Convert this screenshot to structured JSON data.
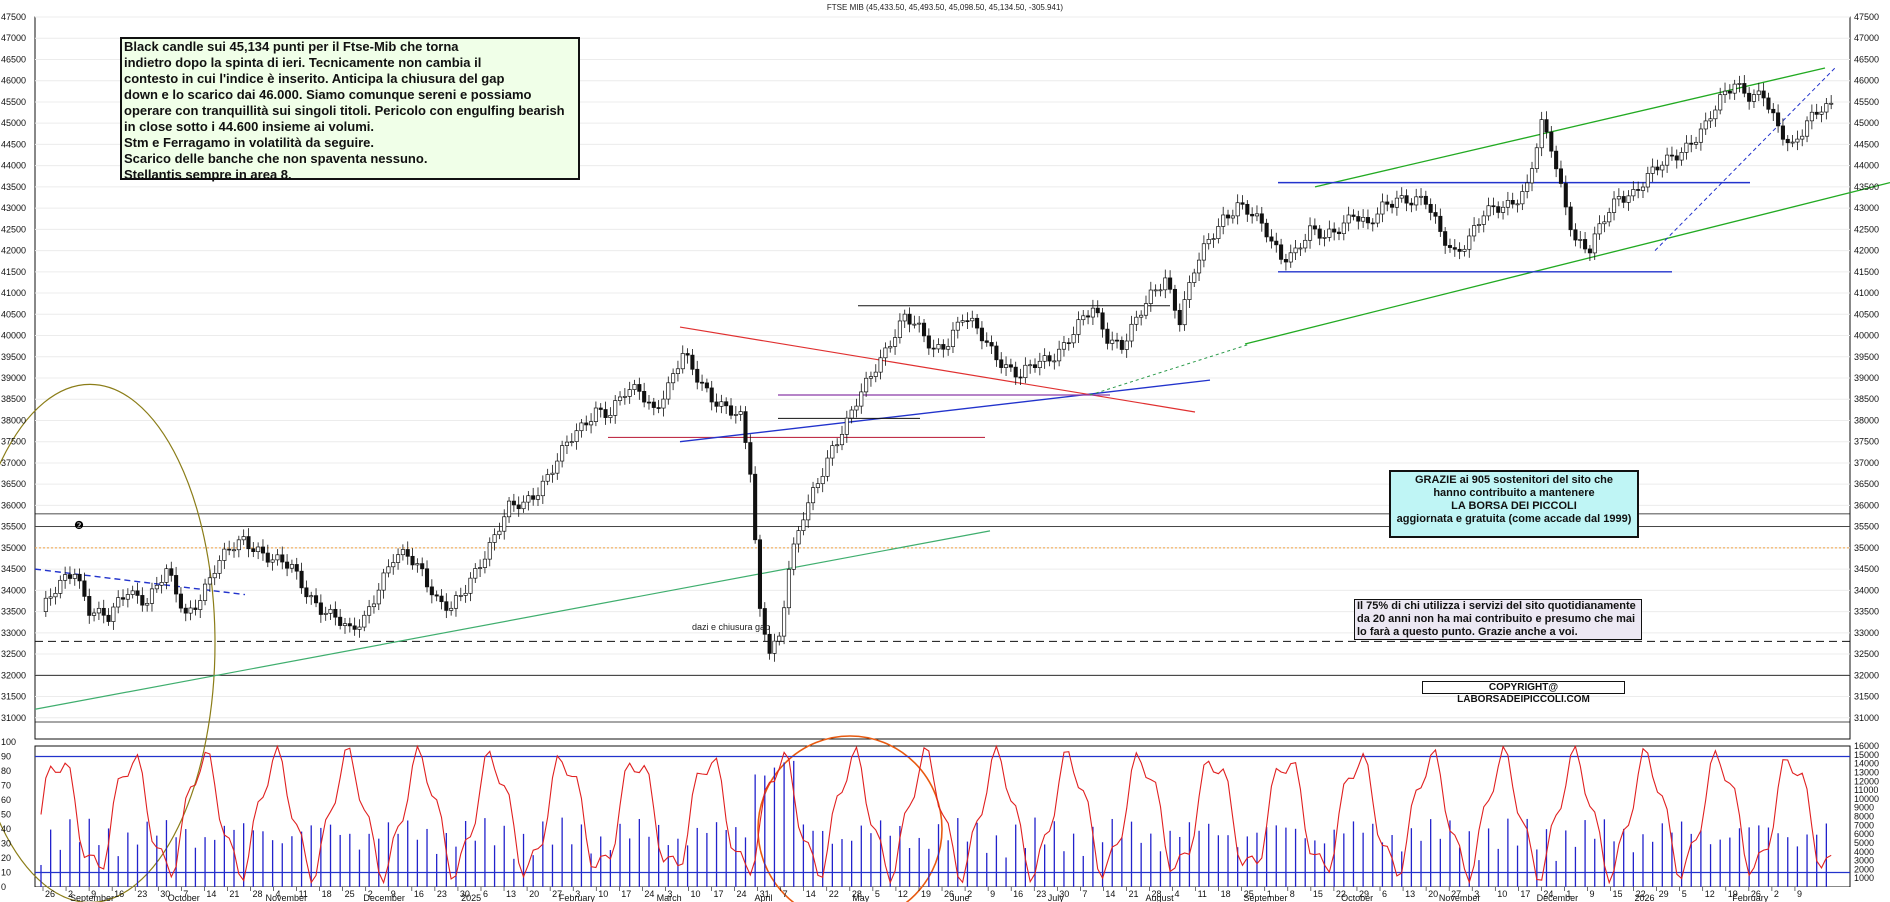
{
  "chart_data": [
    {
      "type": "candlestick",
      "title": "FTSE MIB (45,433.50, 45,493.50, 45,098.50, 45,134.50, -305.941)",
      "ylim": [
        30500,
        47500
      ],
      "y_ticks": [
        31000,
        31500,
        32000,
        32500,
        33000,
        33500,
        34000,
        34500,
        35000,
        35500,
        36000,
        36500,
        37000,
        37500,
        38000,
        38500,
        39000,
        39500,
        40000,
        40500,
        41000,
        41500,
        42000,
        42500,
        43000,
        43500,
        44000,
        44500,
        45000,
        45500,
        46000,
        46500,
        47000,
        47500
      ],
      "price_path": [
        [
          0,
          33500
        ],
        [
          4,
          34100
        ],
        [
          7,
          34500
        ],
        [
          10,
          33600
        ],
        [
          14,
          33300
        ],
        [
          18,
          34000
        ],
        [
          22,
          33800
        ],
        [
          26,
          34400
        ],
        [
          30,
          33400
        ],
        [
          33,
          33900
        ],
        [
          36,
          34500
        ],
        [
          39,
          34900
        ],
        [
          42,
          35200
        ],
        [
          45,
          35000
        ],
        [
          48,
          34700
        ],
        [
          52,
          34500
        ],
        [
          55,
          34000
        ],
        [
          58,
          33600
        ],
        [
          61,
          33300
        ],
        [
          64,
          33000
        ],
        [
          67,
          33400
        ],
        [
          70,
          34100
        ],
        [
          73,
          34700
        ],
        [
          76,
          34800
        ],
        [
          79,
          34500
        ],
        [
          82,
          33800
        ],
        [
          85,
          33500
        ],
        [
          88,
          34000
        ],
        [
          91,
          34700
        ],
        [
          94,
          35300
        ],
        [
          97,
          35900
        ],
        [
          100,
          36000
        ],
        [
          103,
          36400
        ],
        [
          106,
          36900
        ],
        [
          109,
          37400
        ],
        [
          112,
          37800
        ],
        [
          115,
          38300
        ],
        [
          118,
          38200
        ],
        [
          121,
          38600
        ],
        [
          124,
          38700
        ],
        [
          127,
          38300
        ],
        [
          130,
          38800
        ],
        [
          133,
          39500
        ],
        [
          136,
          39000
        ],
        [
          139,
          38600
        ],
        [
          142,
          38300
        ],
        [
          145,
          38000
        ],
        [
          147,
          36800
        ],
        [
          149,
          33500
        ],
        [
          151,
          32700
        ],
        [
          153,
          32900
        ],
        [
          155,
          34500
        ],
        [
          158,
          35700
        ],
        [
          161,
          36600
        ],
        [
          164,
          37400
        ],
        [
          167,
          37900
        ],
        [
          170,
          38600
        ],
        [
          173,
          39300
        ],
        [
          176,
          39900
        ],
        [
          179,
          40400
        ],
        [
          182,
          40100
        ],
        [
          185,
          39700
        ],
        [
          188,
          39900
        ],
        [
          191,
          40400
        ],
        [
          194,
          40100
        ],
        [
          197,
          39700
        ],
        [
          200,
          39300
        ],
        [
          203,
          39000
        ],
        [
          206,
          39300
        ],
        [
          209,
          39500
        ],
        [
          212,
          39800
        ],
        [
          215,
          40200
        ],
        [
          218,
          40600
        ],
        [
          221,
          40000
        ],
        [
          224,
          39800
        ],
        [
          227,
          40300
        ],
        [
          230,
          40900
        ],
        [
          233,
          41400
        ],
        [
          236,
          40400
        ],
        [
          239,
          41500
        ],
        [
          242,
          42200
        ],
        [
          245,
          42800
        ],
        [
          248,
          43100
        ],
        [
          251,
          42800
        ],
        [
          254,
          42400
        ],
        [
          257,
          41900
        ],
        [
          260,
          42000
        ],
        [
          263,
          42400
        ],
        [
          266,
          42300
        ],
        [
          269,
          42600
        ],
        [
          272,
          42900
        ],
        [
          275,
          42500
        ],
        [
          278,
          43000
        ],
        [
          281,
          43300
        ],
        [
          284,
          43200
        ],
        [
          287,
          43100
        ],
        [
          290,
          42400
        ],
        [
          293,
          42000
        ],
        [
          296,
          42300
        ],
        [
          299,
          42800
        ],
        [
          302,
          43000
        ],
        [
          305,
          43200
        ],
        [
          308,
          43500
        ],
        [
          311,
          44900
        ],
        [
          313,
          44400
        ],
        [
          315,
          43500
        ],
        [
          318,
          42300
        ],
        [
          321,
          42000
        ],
        [
          324,
          42700
        ],
        [
          327,
          43300
        ],
        [
          330,
          43400
        ],
        [
          333,
          43700
        ],
        [
          336,
          44000
        ],
        [
          339,
          44300
        ],
        [
          342,
          44600
        ],
        [
          345,
          44900
        ],
        [
          348,
          45500
        ],
        [
          351,
          46000
        ],
        [
          354,
          45700
        ],
        [
          357,
          45600
        ],
        [
          360,
          44800
        ],
        [
          363,
          44500
        ],
        [
          366,
          45100
        ],
        [
          369,
          45300
        ]
      ],
      "horizontal_levels": [
        35500,
        35000,
        32000,
        32800
      ],
      "annotations": [
        "dazi e chiusura gap"
      ],
      "x_day_labels": [
        "26",
        "2",
        "9",
        "16",
        "23",
        "30",
        "7",
        "14",
        "21",
        "28",
        "4",
        "11",
        "18",
        "25",
        "2",
        "9",
        "16",
        "23",
        "30",
        "6",
        "13",
        "20",
        "27",
        "3",
        "10",
        "17",
        "24",
        "3",
        "10",
        "17",
        "24",
        "31",
        "7",
        "14",
        "22",
        "28",
        "5",
        "12",
        "19",
        "26",
        "2",
        "9",
        "16",
        "23",
        "30",
        "7",
        "14",
        "21",
        "28",
        "4",
        "11",
        "18",
        "25",
        "1",
        "8",
        "15",
        "22",
        "29",
        "6",
        "13",
        "20",
        "27",
        "3",
        "10",
        "17",
        "24",
        "1",
        "9",
        "15",
        "22",
        "29",
        "5",
        "12",
        "19",
        "26",
        "2",
        "9"
      ],
      "x_month_labels": [
        "September",
        "October",
        "November",
        "December",
        "2025",
        "February",
        "March",
        "April",
        "May",
        "June",
        "July",
        "August",
        "September",
        "October",
        "November",
        "December",
        "2026",
        "February"
      ]
    },
    {
      "type": "bar",
      "name": "volume",
      "ylim": [
        0,
        16000
      ],
      "y_ticks": [
        1000,
        2000,
        3000,
        4000,
        5000,
        6000,
        7000,
        8000,
        9000,
        10000,
        11000,
        12000,
        13000,
        14000,
        15000,
        16000
      ],
      "y_top_label": "15000"
    },
    {
      "type": "line",
      "name": "oscillator",
      "ylim": [
        0,
        100
      ],
      "y_ticks": [
        0,
        10,
        20,
        30,
        40,
        50,
        60,
        70,
        80,
        90,
        100
      ],
      "levels": [
        90,
        10
      ]
    }
  ],
  "notes": {
    "comment_lines": [
      "Black candle sui 45,134 punti per il Ftse-Mib che torna",
      "indietro dopo la spinta di ieri. Tecnicamente  non cambia il",
      "contesto in cui l'indice è inserito. Anticipa la chiusura del gap",
      "down e lo scarico dai 46.000. Siamo comunque sereni e possiamo",
      "operare con tranquillità sui singoli titoli. Pericolo con engulfing bearish",
      "in close sotto i 44.600 insieme ai volumi.",
      "Stm e Ferragamo in volatilità da seguire.",
      "Scarico delle banche che non spaventa nessuno.",
      "Stellantis sempre in area 8."
    ],
    "thanks_lines": [
      "GRAZIE ai 905  sostenitori del sito che",
      "hanno contribuito a mantenere",
      "LA BORSA DEI PICCOLI",
      "aggiornata e gratuita (come accade dal 1999)"
    ],
    "usage_lines": [
      "Il 75%  di chi utilizza i servizi del sito quotidianamente",
      "da 20 anni non ha mai contribuito e presumo che mai",
      "lo farà a questo punto. Grazie anche a voi."
    ],
    "copyright": "COPYRIGHT@ LABORSADEIPICCOLI.COM",
    "marker": "❷"
  },
  "colors": {
    "candle": "#111111",
    "volume": "#2222cc",
    "oscillator": "#e02020",
    "channel": "#22aa22",
    "range": "#2233cc",
    "downtrend": "#e03030",
    "circle_olive": "#8b7d18",
    "circle_orange": "#e85a10",
    "dashed_blue": "#2233cc",
    "dotted_orange": "#f0a040",
    "purple": "#8a3aa8",
    "seafoam": "#3fae6e"
  }
}
